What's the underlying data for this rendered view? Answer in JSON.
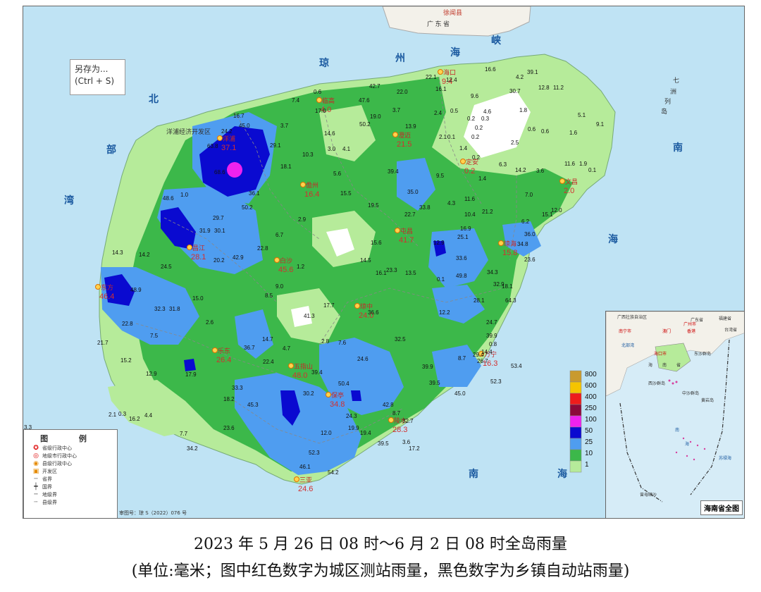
{
  "title": "2023 年 5 月 26 日 08 时～6 月 2 日 08 时全岛雨量",
  "subtitle": "(单位:毫米；图中红色数字为城区测站雨量，黑色数字为乡镇自动站雨量)",
  "save_popup": {
    "line1": "另存为...",
    "line2": "(Ctrl + S)"
  },
  "sea_labels": [
    "北",
    "部",
    "湾",
    "琼",
    "州",
    "海",
    "峡",
    "南",
    "海",
    "南",
    "海"
  ],
  "region_labels": {
    "guangdong": "广 东 省",
    "xuwen": "徐闻县",
    "qizhou1": "七",
    "qizhou2": "洲",
    "qizhou3": "列",
    "qizhou4": "岛",
    "yangpu": "洋浦经济开发区"
  },
  "cities": [
    {
      "name": "海口",
      "value": "9.4"
    },
    {
      "name": "临高",
      "value": "4.0"
    },
    {
      "name": "澄迈",
      "value": "21.5"
    },
    {
      "name": "定安",
      "value": "0.2"
    },
    {
      "name": "文昌",
      "value": "2.0"
    },
    {
      "name": "儋州",
      "value": "16.4"
    },
    {
      "name": "屯昌",
      "value": "41.7"
    },
    {
      "name": "琼海",
      "value": "15.8"
    },
    {
      "name": "昌江",
      "value": "28.1"
    },
    {
      "name": "白沙",
      "value": "45.6"
    },
    {
      "name": "东方",
      "value": "46.4"
    },
    {
      "name": "琼中",
      "value": "24.0"
    },
    {
      "name": "乐东",
      "value": "26.4"
    },
    {
      "name": "五指山",
      "value": "48.0"
    },
    {
      "name": "保亭",
      "value": "34.8"
    },
    {
      "name": "陵水",
      "value": "28.3"
    },
    {
      "name": "万宁",
      "value": "16.3"
    },
    {
      "name": "三亚",
      "value": "24.6"
    },
    {
      "name": "洋浦",
      "value": "37.1"
    }
  ],
  "stations": [
    "16.6",
    "4.2",
    "39.1",
    "42.7",
    "22.0",
    "22.1",
    "12.4",
    "16.1",
    "30.7",
    "12.8",
    "11.2",
    "0.6",
    "47.6",
    "9.6",
    "7.4",
    "17.0",
    "3.7",
    "2.4",
    "0.5",
    "4.6",
    "1.8",
    "5.1",
    "16.7",
    "50.2",
    "19.0",
    "0.2",
    "0.3",
    "9.1",
    "45.0",
    "14.6",
    "13.9",
    "0.2",
    "0.6",
    "0.6",
    "1.6",
    "24.2",
    "3.7",
    "2.1",
    "0.1",
    "0.2",
    "63.8",
    "29.1",
    "3.0",
    "4.1",
    "1.4",
    "2.5",
    "0.2",
    "10.3",
    "39.4",
    "6.3",
    "14.2",
    "3.6",
    "11.6",
    "1.9",
    "0.1",
    "68.6",
    "18.1",
    "5.6",
    "9.5",
    "1.4",
    "7.0",
    "48.6",
    "1.0",
    "36.1",
    "15.5",
    "35.0",
    "4.3",
    "11.6",
    "50.2",
    "19.5",
    "22.7",
    "33.8",
    "10.4",
    "21.2",
    "15.1",
    "12.0",
    "29.7",
    "2.9",
    "16.9",
    "6.2",
    "31.9",
    "30.1",
    "6.7",
    "15.6",
    "25.1",
    "36.0",
    "34.8",
    "22.8",
    "12.9",
    "14.3",
    "14.2",
    "42.9",
    "14.5",
    "33.6",
    "23.6",
    "24.5",
    "20.2",
    "1.2",
    "16.1",
    "23.3",
    "13.5",
    "49.8",
    "0.1",
    "34.3",
    "48.9",
    "9.0",
    "32.9",
    "18.1",
    "8.5",
    "15.0",
    "28.1",
    "64.3",
    "32.3",
    "31.8",
    "17.7",
    "36.6",
    "12.2",
    "22.8",
    "41.3",
    "2.6",
    "24.7",
    "7.5",
    "14.7",
    "2.8",
    "7.6",
    "32.5",
    "39.9",
    "21.7",
    "36.7",
    "4.7",
    "0.8",
    "22.4",
    "24.6",
    "8.7",
    "29.4",
    "26.7",
    "14.4",
    "15.2",
    "39.9",
    "53.4",
    "12.9",
    "39.4",
    "52.3",
    "17.9",
    "33.3",
    "50.4",
    "39.5",
    "45.0",
    "18.2",
    "30.2",
    "4.4",
    "45.3",
    "42.8",
    "3.3",
    "2.1",
    "0.3",
    "16.2",
    "24.3",
    "8.7",
    "19.9",
    "32.7",
    "7.7",
    "23.6",
    "12.0",
    "19.4",
    "17.2",
    "39.5",
    "34.2",
    "52.3",
    "46.1",
    "54.2",
    "3.6"
  ],
  "legend_scale": [
    "800",
    "600",
    "400",
    "250",
    "100",
    "50",
    "25",
    "10",
    "1"
  ],
  "legend_colors": [
    "#c99a2e",
    "#f5c400",
    "#ee1c1c",
    "#8b0a3a",
    "#ee22ee",
    "#0a0ad0",
    "#4f9df0",
    "#3cb84a",
    "#b6eb9a"
  ],
  "legend_box": {
    "head": "图 例",
    "items": [
      "省级行政中心",
      "地级市行政中心",
      "县级行政中心",
      "开发区",
      "省界",
      "国界",
      "地级界",
      "县级界"
    ]
  },
  "review_no": "审图号：琼 S（2022）076 号",
  "inset": {
    "title": "海南省全图",
    "labels": [
      "广西壮族自治区",
      "广东省",
      "福建省",
      "台湾省",
      "南宁市",
      "澳门",
      "广州市",
      "香港",
      "北部湾",
      "海口市",
      "海",
      "南",
      "省",
      "西沙群岛",
      "中沙群岛",
      "黄岩岛",
      "东沙群岛",
      "南",
      "海",
      "苏禄海",
      "曾母暗沙"
    ]
  }
}
